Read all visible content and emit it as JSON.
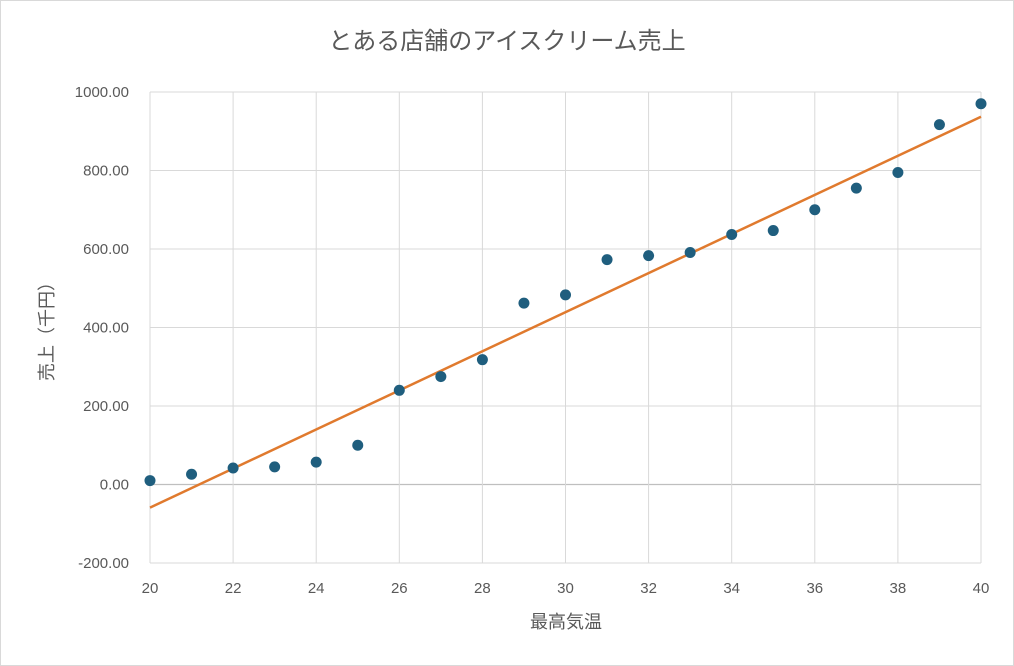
{
  "chart_data": {
    "type": "scatter",
    "title": "とある店舗のアイスクリーム売上",
    "xlabel": "最高気温",
    "ylabel": "売上（千円）",
    "xlim": [
      20,
      40
    ],
    "ylim": [
      -200,
      1000
    ],
    "x_ticks": [
      20,
      22,
      24,
      26,
      28,
      30,
      32,
      34,
      36,
      38,
      40
    ],
    "y_ticks": [
      "-200.00",
      "0.00",
      "200.00",
      "400.00",
      "600.00",
      "800.00",
      "1000.00"
    ],
    "grid": true,
    "colors": {
      "points": "#1f5e7e",
      "trendline": "#e07a2e"
    },
    "series": [
      {
        "x": [
          20,
          21,
          22,
          23,
          24,
          25,
          26,
          27,
          28,
          29,
          30,
          31,
          32,
          33,
          34,
          35,
          36,
          37,
          38,
          39,
          40
        ],
        "y": [
          10,
          26,
          42,
          45,
          57,
          100,
          240,
          275,
          318,
          462,
          483,
          573,
          583,
          591,
          637,
          647,
          700,
          755,
          795,
          917,
          970
        ]
      }
    ],
    "trendline": {
      "type": "linear",
      "x": [
        20,
        40
      ],
      "y": [
        -59,
        937
      ]
    }
  }
}
